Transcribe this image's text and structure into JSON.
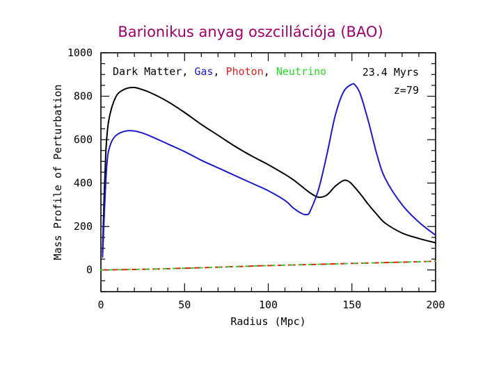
{
  "slide": {
    "title": "Barionikus anyag oszcillációja (BAO)"
  },
  "chart_data": {
    "type": "line",
    "xlabel": "Radius (Mpc)",
    "ylabel": "Mass Profile of Perturbation",
    "xlim": [
      0,
      200
    ],
    "ylim": [
      -100,
      1000
    ],
    "x_ticks": [
      0,
      50,
      100,
      150,
      200
    ],
    "y_ticks": [
      0,
      200,
      400,
      600,
      800,
      1000
    ],
    "grid": false,
    "annotations": {
      "time": "23.4 Myrs",
      "redshift": "z=79"
    },
    "legend": [
      {
        "text": "Dark Matter",
        "sep": ", ",
        "color": "#000000"
      },
      {
        "text": "Gas",
        "sep": ", ",
        "color": "#1a1acc"
      },
      {
        "text": "Photon",
        "sep": ", ",
        "color": "#e02020"
      },
      {
        "text": "Neutrino",
        "sep": "",
        "color": "#22e022"
      }
    ],
    "series": [
      {
        "name": "Dark Matter",
        "color": "#000000",
        "dash": "",
        "x": [
          1,
          2,
          3,
          4,
          5,
          7,
          10,
          15,
          20,
          25,
          30,
          40,
          50,
          60,
          70,
          80,
          90,
          100,
          110,
          115,
          120,
          125,
          130,
          135,
          140,
          145,
          148,
          150,
          155,
          160,
          165,
          170,
          180,
          190,
          200
        ],
        "y": [
          80,
          350,
          550,
          650,
          700,
          760,
          810,
          835,
          840,
          830,
          815,
          775,
          725,
          670,
          620,
          570,
          525,
          485,
          440,
          415,
          385,
          355,
          335,
          345,
          385,
          412,
          408,
          395,
          350,
          300,
          255,
          215,
          170,
          145,
          125
        ]
      },
      {
        "name": "Gas",
        "color": "#1a1acc",
        "dash": "",
        "x": [
          1,
          2,
          3,
          4,
          5,
          7,
          10,
          15,
          20,
          25,
          30,
          40,
          50,
          60,
          70,
          80,
          90,
          100,
          110,
          115,
          120,
          123,
          125,
          130,
          135,
          140,
          145,
          150,
          152,
          155,
          160,
          165,
          170,
          180,
          190,
          200
        ],
        "y": [
          60,
          250,
          420,
          520,
          560,
          600,
          625,
          640,
          640,
          630,
          615,
          580,
          545,
          505,
          470,
          435,
          400,
          365,
          320,
          285,
          260,
          255,
          270,
          370,
          530,
          710,
          820,
          855,
          850,
          810,
          680,
          530,
          420,
          300,
          220,
          160
        ]
      },
      {
        "name": "Photon",
        "color": "#e02020",
        "dash": "9 6",
        "x": [
          0,
          25,
          50,
          75,
          100,
          125,
          150,
          175,
          200
        ],
        "y": [
          0,
          3,
          8,
          14,
          20,
          25,
          30,
          35,
          40
        ]
      },
      {
        "name": "Neutrino",
        "color": "#22e022",
        "dash": "3 10",
        "x": [
          0,
          25,
          50,
          75,
          100,
          125,
          150,
          175,
          200
        ],
        "y": [
          0,
          3,
          8,
          14,
          20,
          25,
          30,
          35,
          40
        ]
      }
    ]
  }
}
